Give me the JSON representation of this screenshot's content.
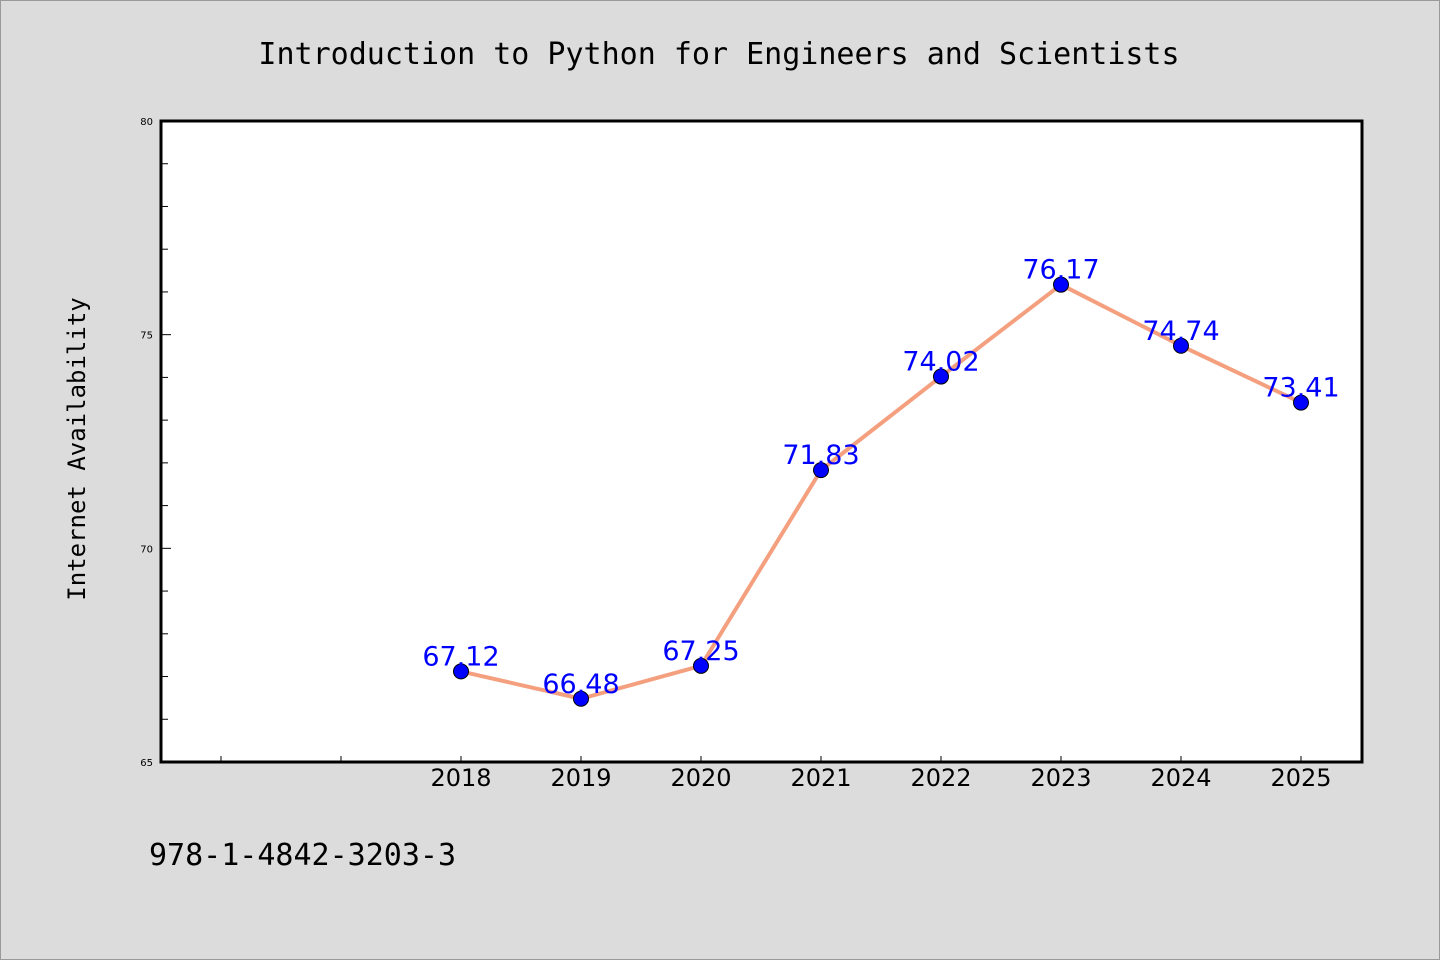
{
  "colors": {
    "background": "#dcdcdc",
    "plot_background": "#ffffff",
    "line": "#f4a07f",
    "marker": "#0000ff",
    "label": "#0000ff"
  },
  "footer": {
    "isbn": "978-1-4842-3203-3"
  },
  "chart_data": {
    "type": "line",
    "title": "Introduction to Python for Engineers and Scientists",
    "xlabel": "",
    "ylabel": "Internet Availability",
    "categories": [
      "2018",
      "2019",
      "2020",
      "2021",
      "2022",
      "2023",
      "2024",
      "2025"
    ],
    "series": [
      {
        "values": [
          67.12,
          66.48,
          67.25,
          71.83,
          74.02,
          76.17,
          74.74,
          73.41
        ],
        "labels": [
          "67.12",
          "66.48",
          "67.25",
          "71.83",
          "74.02",
          "76.17",
          "74.74",
          "73.41"
        ]
      }
    ],
    "ylim": [
      65,
      80
    ],
    "yticks": [
      "65",
      "70",
      "75",
      "80"
    ],
    "grid": false,
    "legend": "none"
  }
}
